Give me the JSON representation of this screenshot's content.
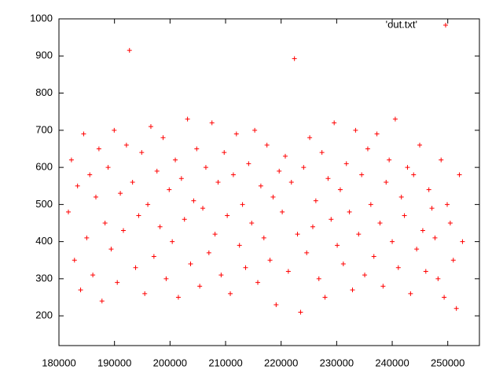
{
  "chart_data": {
    "type": "scatter",
    "x": [
      181700,
      182250,
      182800,
      183350,
      183900,
      184450,
      185000,
      185550,
      186100,
      186650,
      187200,
      187750,
      188300,
      188850,
      189400,
      189950,
      190500,
      191050,
      191600,
      192150,
      192700,
      193250,
      193800,
      194350,
      194900,
      195450,
      196000,
      196550,
      197100,
      197650,
      198200,
      198750,
      199300,
      199850,
      200400,
      200950,
      201500,
      202050,
      202600,
      203150,
      203700,
      204250,
      204800,
      205350,
      205900,
      206450,
      207000,
      207550,
      208100,
      208650,
      209200,
      209750,
      210300,
      210850,
      211400,
      211950,
      212500,
      213050,
      213600,
      214150,
      214700,
      215250,
      215800,
      216350,
      216900,
      217450,
      218000,
      218550,
      219100,
      219650,
      220200,
      220750,
      221300,
      221850,
      222400,
      222950,
      223500,
      224050,
      224600,
      225150,
      225700,
      226250,
      226800,
      227350,
      227900,
      228450,
      229000,
      229550,
      230100,
      230650,
      231200,
      231750,
      232300,
      232850,
      233400,
      233950,
      234500,
      235050,
      235600,
      236150,
      236700,
      237250,
      237800,
      238350,
      238900,
      239450,
      240000,
      240550,
      241100,
      241650,
      242200,
      242750,
      243300,
      243850,
      244400,
      244950,
      245500,
      246050,
      246600,
      247150,
      247700,
      248250,
      248800,
      249350,
      249900,
      250450,
      251000,
      251550,
      252100,
      252650
    ],
    "series": [
      {
        "name": "'out.txt'",
        "color": "#ff0000",
        "values": [
          480,
          620,
          350,
          550,
          270,
          690,
          410,
          580,
          310,
          520,
          650,
          240,
          450,
          600,
          380,
          700,
          290,
          530,
          430,
          660,
          915,
          560,
          330,
          470,
          640,
          260,
          500,
          710,
          360,
          590,
          440,
          680,
          300,
          540,
          400,
          620,
          250,
          570,
          460,
          730,
          340,
          510,
          650,
          280,
          490,
          600,
          370,
          720,
          420,
          560,
          310,
          640,
          470,
          260,
          580,
          690,
          390,
          500,
          330,
          610,
          450,
          700,
          290,
          550,
          410,
          660,
          350,
          520,
          230,
          590,
          480,
          630,
          320,
          560,
          893,
          420,
          210,
          600,
          370,
          680,
          440,
          510,
          300,
          640,
          250,
          570,
          460,
          720,
          390,
          540,
          340,
          610,
          480,
          270,
          700,
          420,
          580,
          310,
          650,
          500,
          360,
          690,
          450,
          280,
          560,
          620,
          400,
          730,
          330,
          520,
          470,
          600,
          260,
          580,
          380,
          660,
          430,
          320,
          540,
          490,
          410,
          300,
          620,
          250,
          500,
          450,
          350,
          220,
          580,
          400
        ]
      }
    ],
    "xlim": [
      180000,
      255700
    ],
    "ylim": [
      120,
      1000
    ],
    "xticks": [
      180000,
      190000,
      200000,
      210000,
      220000,
      230000,
      240000,
      250000
    ],
    "yticks": [
      200,
      300,
      400,
      500,
      600,
      700,
      800,
      900,
      1000
    ],
    "grid": false,
    "legend": "top-right"
  }
}
